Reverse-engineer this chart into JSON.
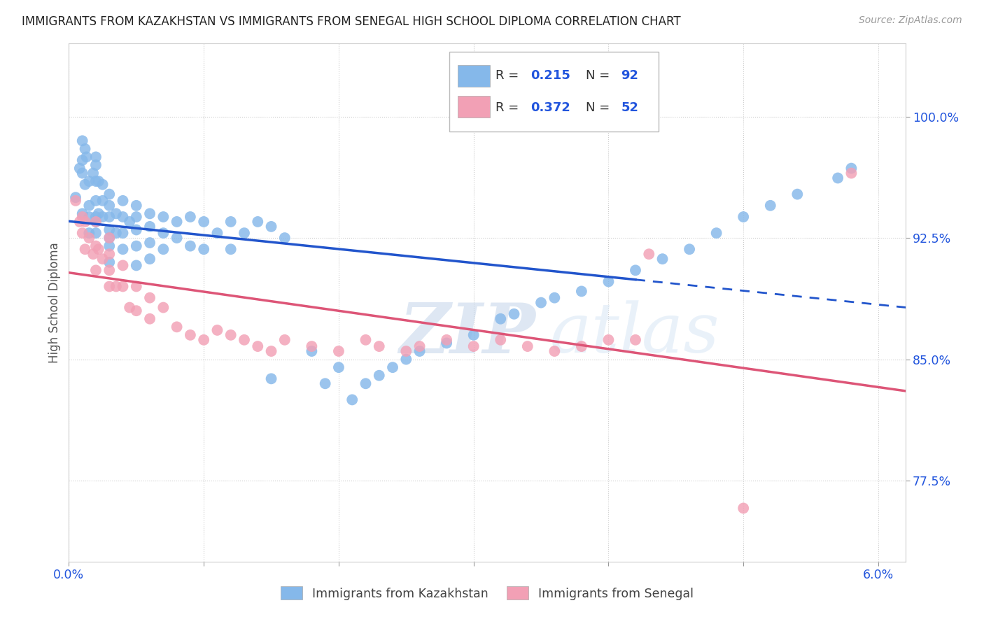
{
  "title": "IMMIGRANTS FROM KAZAKHSTAN VS IMMIGRANTS FROM SENEGAL HIGH SCHOOL DIPLOMA CORRELATION CHART",
  "source": "Source: ZipAtlas.com",
  "ylabel": "High School Diploma",
  "yticks": [
    "77.5%",
    "85.0%",
    "92.5%",
    "100.0%"
  ],
  "ytick_values": [
    0.775,
    0.85,
    0.925,
    1.0
  ],
  "xlim": [
    0.0,
    0.062
  ],
  "ylim": [
    0.725,
    1.045
  ],
  "color_kazakhstan": "#85B8EA",
  "color_senegal": "#F2A0B5",
  "color_axis": "#2255DD",
  "trendline_color_kaz": "#2255CC",
  "trendline_color_sen": "#DD5577",
  "watermark_zip": "ZIP",
  "watermark_atlas": "atlas",
  "grid_color": "#cccccc",
  "kaz_x": [
    0.0005,
    0.0008,
    0.001,
    0.001,
    0.001,
    0.001,
    0.0012,
    0.0012,
    0.0013,
    0.0015,
    0.0015,
    0.0015,
    0.0015,
    0.0018,
    0.002,
    0.002,
    0.002,
    0.002,
    0.002,
    0.002,
    0.002,
    0.0022,
    0.0022,
    0.0025,
    0.0025,
    0.0025,
    0.003,
    0.003,
    0.003,
    0.003,
    0.003,
    0.003,
    0.003,
    0.0035,
    0.0035,
    0.004,
    0.004,
    0.004,
    0.004,
    0.0045,
    0.005,
    0.005,
    0.005,
    0.005,
    0.005,
    0.006,
    0.006,
    0.006,
    0.006,
    0.007,
    0.007,
    0.007,
    0.008,
    0.008,
    0.009,
    0.009,
    0.01,
    0.01,
    0.011,
    0.012,
    0.012,
    0.013,
    0.014,
    0.015,
    0.015,
    0.016,
    0.018,
    0.019,
    0.02,
    0.021,
    0.022,
    0.023,
    0.024,
    0.025,
    0.026,
    0.028,
    0.03,
    0.032,
    0.033,
    0.035,
    0.036,
    0.038,
    0.04,
    0.042,
    0.044,
    0.046,
    0.048,
    0.05,
    0.052,
    0.054,
    0.057,
    0.058
  ],
  "kaz_y": [
    0.95,
    0.968,
    0.985,
    0.973,
    0.965,
    0.94,
    0.958,
    0.98,
    0.975,
    0.96,
    0.945,
    0.938,
    0.928,
    0.965,
    0.975,
    0.97,
    0.96,
    0.948,
    0.938,
    0.935,
    0.928,
    0.96,
    0.94,
    0.958,
    0.948,
    0.938,
    0.952,
    0.945,
    0.938,
    0.93,
    0.925,
    0.92,
    0.91,
    0.94,
    0.928,
    0.948,
    0.938,
    0.928,
    0.918,
    0.935,
    0.945,
    0.938,
    0.93,
    0.92,
    0.908,
    0.94,
    0.932,
    0.922,
    0.912,
    0.938,
    0.928,
    0.918,
    0.935,
    0.925,
    0.938,
    0.92,
    0.935,
    0.918,
    0.928,
    0.935,
    0.918,
    0.928,
    0.935,
    0.932,
    0.838,
    0.925,
    0.855,
    0.835,
    0.845,
    0.825,
    0.835,
    0.84,
    0.845,
    0.85,
    0.855,
    0.86,
    0.865,
    0.875,
    0.878,
    0.885,
    0.888,
    0.892,
    0.898,
    0.905,
    0.912,
    0.918,
    0.928,
    0.938,
    0.945,
    0.952,
    0.962,
    0.968
  ],
  "sen_x": [
    0.0005,
    0.0008,
    0.001,
    0.001,
    0.0012,
    0.0012,
    0.0015,
    0.0018,
    0.002,
    0.002,
    0.002,
    0.0022,
    0.0025,
    0.003,
    0.003,
    0.003,
    0.003,
    0.0035,
    0.004,
    0.004,
    0.0045,
    0.005,
    0.005,
    0.006,
    0.006,
    0.007,
    0.008,
    0.009,
    0.01,
    0.011,
    0.012,
    0.013,
    0.014,
    0.015,
    0.016,
    0.018,
    0.02,
    0.022,
    0.023,
    0.025,
    0.026,
    0.028,
    0.03,
    0.032,
    0.034,
    0.036,
    0.038,
    0.04,
    0.042,
    0.043,
    0.05,
    0.058
  ],
  "sen_y": [
    0.948,
    0.935,
    0.938,
    0.928,
    0.935,
    0.918,
    0.925,
    0.915,
    0.935,
    0.92,
    0.905,
    0.918,
    0.912,
    0.925,
    0.915,
    0.905,
    0.895,
    0.895,
    0.908,
    0.895,
    0.882,
    0.895,
    0.88,
    0.888,
    0.875,
    0.882,
    0.87,
    0.865,
    0.862,
    0.868,
    0.865,
    0.862,
    0.858,
    0.855,
    0.862,
    0.858,
    0.855,
    0.862,
    0.858,
    0.855,
    0.858,
    0.862,
    0.858,
    0.862,
    0.858,
    0.855,
    0.858,
    0.862,
    0.862,
    0.915,
    0.758,
    0.965
  ]
}
